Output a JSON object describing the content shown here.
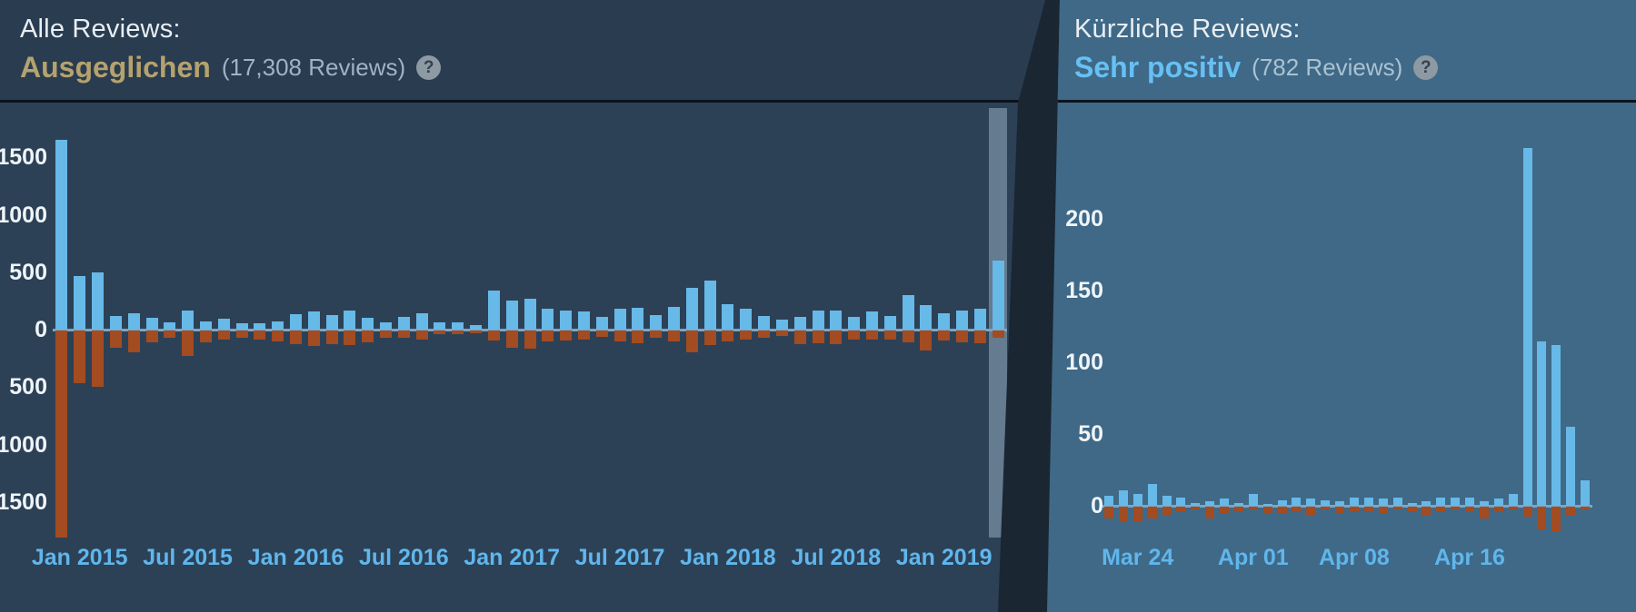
{
  "left_panel": {
    "title": "Alle Reviews:",
    "rating": "Ausgeglichen",
    "rating_color": "#b5a26d",
    "count_text": "(17,308 Reviews)",
    "help_icon": "?"
  },
  "right_panel": {
    "title": "Kürzliche Reviews:",
    "rating": "Sehr positiv",
    "rating_color": "#66c0f4",
    "count_text": "(782 Reviews)",
    "help_icon": "?"
  },
  "colors": {
    "positive_bar": "#67b9e8",
    "negative_bar": "#a34b21",
    "zero_line": "#7ea4c2",
    "left_background": "#2c4156",
    "right_background": "#3f6987",
    "divider": "#1b2633",
    "date_label": "#60b6ec",
    "highlight_band": "rgba(168,196,216,0.45)"
  },
  "chart_data": [
    {
      "type": "bar",
      "name": "all-reviews-histogram",
      "x_unit": "month",
      "ylim": [
        -1800,
        1800
      ],
      "grid": false,
      "legend": "none",
      "highlight_index": 52,
      "y_ticks": [
        {
          "label": "1500",
          "value": 1500
        },
        {
          "label": "1000",
          "value": 1000
        },
        {
          "label": "500",
          "value": 500
        },
        {
          "label": "0",
          "value": 0
        },
        {
          "label": "500",
          "value": -500
        },
        {
          "label": "1000",
          "value": -1000
        },
        {
          "label": "1500",
          "value": -1500
        }
      ],
      "x_ticks": [
        {
          "index": 1,
          "label": "Jan 2015"
        },
        {
          "index": 7,
          "label": "Jul 2015"
        },
        {
          "index": 13,
          "label": "Jan 2016"
        },
        {
          "index": 19,
          "label": "Jul 2016"
        },
        {
          "index": 25,
          "label": "Jan 2017"
        },
        {
          "index": 31,
          "label": "Jul 2017"
        },
        {
          "index": 37,
          "label": "Jan 2018"
        },
        {
          "index": 43,
          "label": "Jul 2018"
        },
        {
          "index": 49,
          "label": "Jan 2019"
        }
      ],
      "series": [
        {
          "name": "positive",
          "color": "#67b9e8",
          "values": [
            1650,
            470,
            500,
            120,
            145,
            100,
            60,
            165,
            75,
            95,
            55,
            55,
            70,
            135,
            160,
            125,
            170,
            105,
            60,
            110,
            145,
            60,
            65,
            40,
            340,
            255,
            270,
            185,
            170,
            160,
            115,
            180,
            190,
            125,
            195,
            365,
            425,
            220,
            180,
            120,
            90,
            110,
            170,
            170,
            110,
            160,
            120,
            300,
            215,
            140,
            165,
            180,
            600
          ]
        },
        {
          "name": "negative",
          "color": "#a34b21",
          "values": [
            1820,
            460,
            490,
            150,
            190,
            105,
            65,
            220,
            105,
            75,
            65,
            75,
            95,
            115,
            135,
            115,
            125,
            105,
            65,
            65,
            75,
            35,
            30,
            25,
            90,
            150,
            160,
            95,
            85,
            80,
            55,
            95,
            110,
            65,
            95,
            190,
            130,
            95,
            80,
            60,
            50,
            120,
            110,
            120,
            80,
            80,
            80,
            100,
            170,
            90,
            100,
            110,
            60
          ]
        }
      ]
    },
    {
      "type": "bar",
      "name": "recent-reviews-histogram",
      "x_unit": "day",
      "ylim": [
        -100,
        280
      ],
      "grid": false,
      "legend": "none",
      "highlight_index": null,
      "y_ticks": [
        {
          "label": "200",
          "value": 200
        },
        {
          "label": "150",
          "value": 150
        },
        {
          "label": "100",
          "value": 100
        },
        {
          "label": "50",
          "value": 50
        },
        {
          "label": "0",
          "value": 0
        }
      ],
      "x_ticks": [
        {
          "index": 2,
          "label": "Mar 24"
        },
        {
          "index": 10,
          "label": "Apr 01"
        },
        {
          "index": 17,
          "label": "Apr 08"
        },
        {
          "index": 25,
          "label": "Apr 16"
        }
      ],
      "series": [
        {
          "name": "positive",
          "color": "#67b9e8",
          "values": [
            7,
            11,
            8,
            15,
            7,
            6,
            2,
            3,
            5,
            2,
            8,
            1,
            4,
            6,
            5,
            4,
            3,
            6,
            6,
            5,
            6,
            2,
            3,
            6,
            6,
            6,
            3,
            5,
            8,
            250,
            115,
            112,
            55,
            18
          ]
        },
        {
          "name": "negative",
          "color": "#a34b21",
          "values": [
            8,
            11,
            10,
            8,
            6,
            3,
            2,
            8,
            5,
            3,
            2,
            5,
            5,
            4,
            6,
            2,
            5,
            3,
            4,
            5,
            2,
            3,
            6,
            3,
            2,
            3,
            8,
            4,
            2,
            7,
            16,
            17,
            6,
            2
          ]
        }
      ]
    }
  ]
}
